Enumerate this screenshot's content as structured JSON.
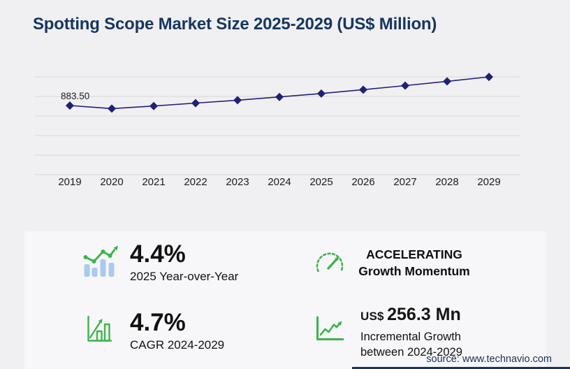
{
  "title": "Spotting Scope Market Size 2025-2029 (US$ Million)",
  "chart_data": {
    "type": "line",
    "title": "Spotting Scope Market Size 2025-2029 (US$ Million)",
    "x": [
      2019,
      2020,
      2021,
      2022,
      2023,
      2024,
      2025,
      2026,
      2027,
      2028,
      2029
    ],
    "series": [
      {
        "name": "Market size (US$ million)",
        "values": [
          883.5,
          845.0,
          878.0,
          915.0,
          952.0,
          993.4,
          1037.1,
          1086.6,
          1138.5,
          1192.9,
          1249.7
        ]
      }
    ],
    "first_point_label": "883.50",
    "xlabel": "",
    "ylabel": "",
    "ylim": [
      0,
      1250
    ],
    "gridline_step": 250,
    "grid": true,
    "legend": false,
    "marker": "diamond",
    "line_color": "#22227a"
  },
  "stats": {
    "yoy": {
      "value": "4.4%",
      "label": "2025 Year-over-Year",
      "icon": "bar-chart-trend-icon"
    },
    "momentum": {
      "line1": "ACCELERATING",
      "line2": "Growth Momentum",
      "icon": "speedometer-icon"
    },
    "cagr": {
      "value": "4.7%",
      "label": "CAGR 2024-2029",
      "icon": "growth-bars-arrow-icon"
    },
    "incremental": {
      "currency": "US$",
      "value": "256.3 Mn",
      "label_line1": "Incremental Growth",
      "label_line2": "between 2024-2029",
      "icon": "trend-line-arrow-icon"
    }
  },
  "source": "source: www.technavio.com",
  "colors": {
    "page_bg": "#f0f0f2",
    "card_bg": "#f7f7f9",
    "title_navy": "#17365f",
    "line_navy": "#22227a",
    "accent_green": "#3bb54a",
    "bar_blue": "#abc9f1",
    "gridline": "#d9d9db"
  }
}
